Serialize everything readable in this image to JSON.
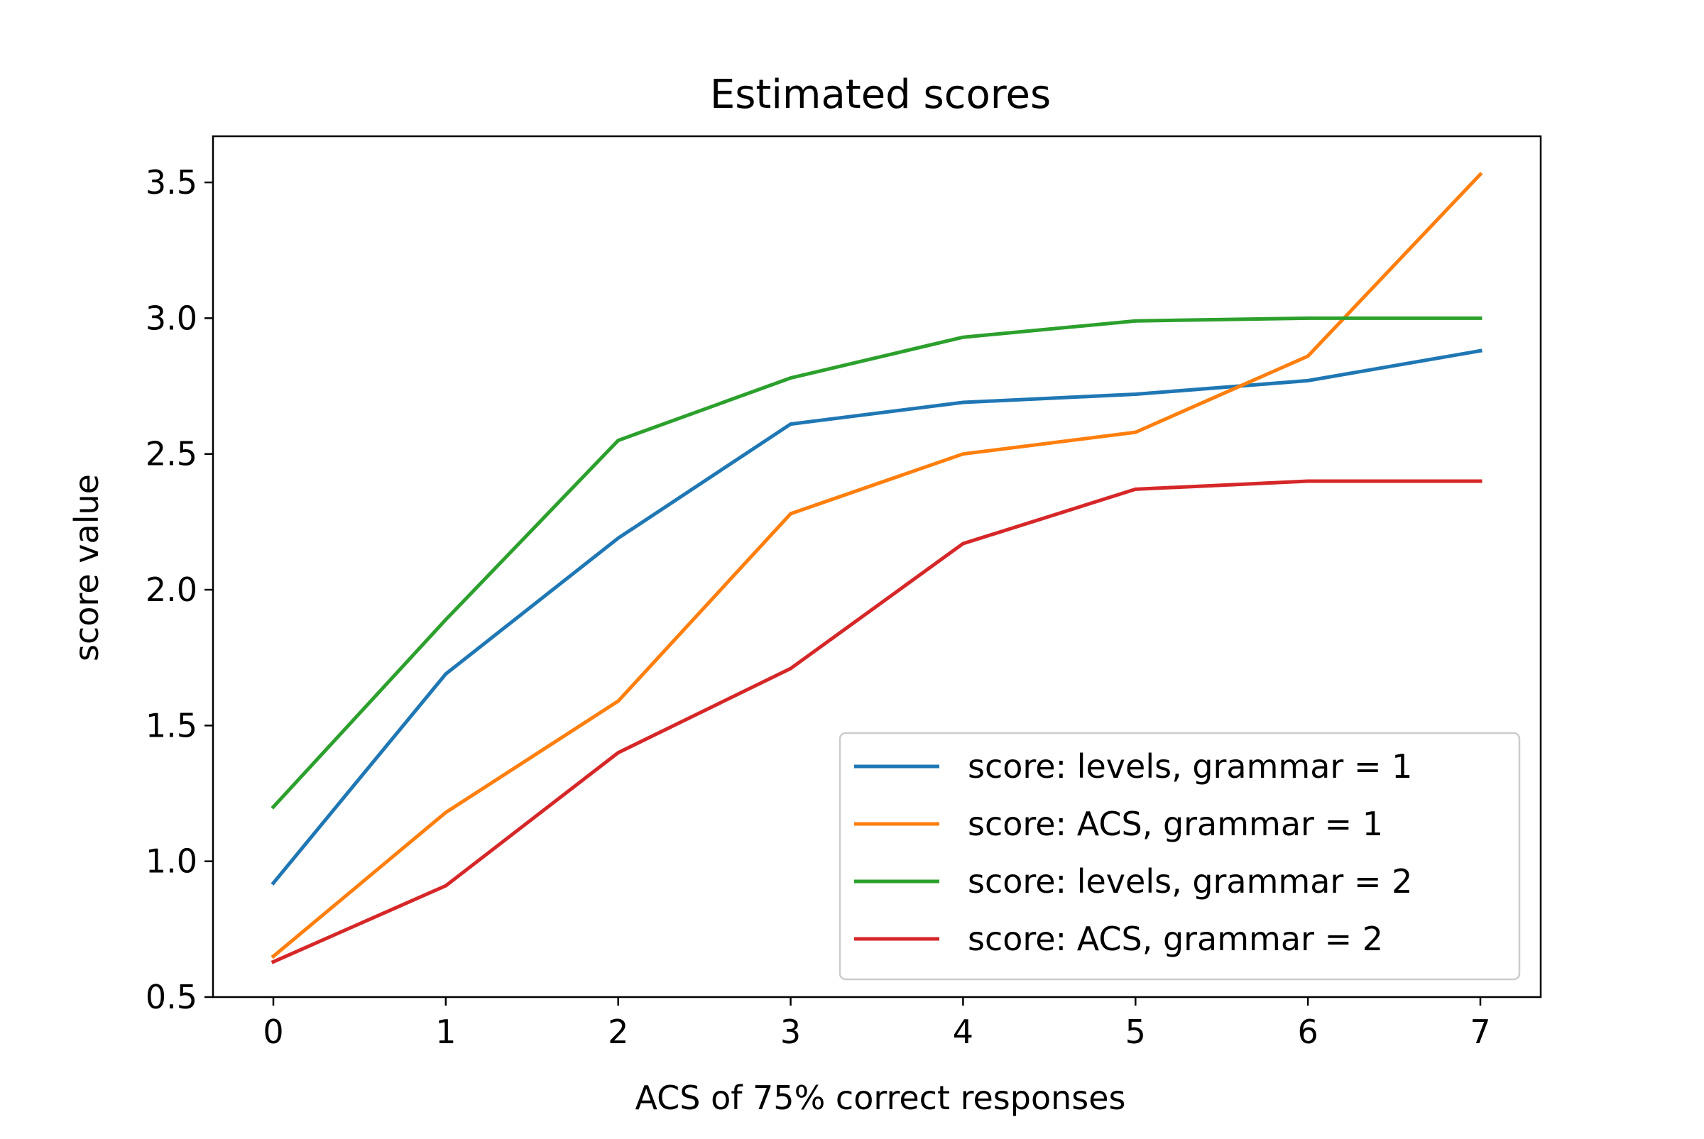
{
  "chart_data": {
    "type": "line",
    "title": "Estimated scores",
    "xlabel": "ACS of 75% correct responses",
    "ylabel": "score value",
    "x": [
      0,
      1,
      2,
      3,
      4,
      5,
      6,
      7
    ],
    "xticks": [
      "0",
      "1",
      "2",
      "3",
      "4",
      "5",
      "6",
      "7"
    ],
    "yticks": [
      "0.5",
      "1.0",
      "1.5",
      "2.0",
      "2.5",
      "3.0",
      "3.5"
    ],
    "ytick_values": [
      0.5,
      1.0,
      1.5,
      2.0,
      2.5,
      3.0,
      3.5
    ],
    "xlim": [
      -0.35,
      7.35
    ],
    "ylim": [
      0.5,
      3.67
    ],
    "grid": false,
    "legend_position": "bottom-right",
    "series": [
      {
        "name": "score: levels, grammar = 1",
        "color": "#1f77b4",
        "values": [
          0.92,
          1.69,
          2.19,
          2.61,
          2.69,
          2.72,
          2.77,
          2.88
        ]
      },
      {
        "name": "score: ACS, grammar = 1",
        "color": "#ff7f0e",
        "values": [
          0.65,
          1.18,
          1.59,
          2.28,
          2.5,
          2.58,
          2.86,
          3.53
        ]
      },
      {
        "name": "score: levels, grammar = 2",
        "color": "#2ca02c",
        "values": [
          1.2,
          1.89,
          2.55,
          2.78,
          2.93,
          2.99,
          3.0,
          3.0
        ]
      },
      {
        "name": "score: ACS, grammar = 2",
        "color": "#d62728",
        "values": [
          0.63,
          0.91,
          1.4,
          1.71,
          2.17,
          2.37,
          2.4,
          2.4
        ]
      }
    ]
  }
}
